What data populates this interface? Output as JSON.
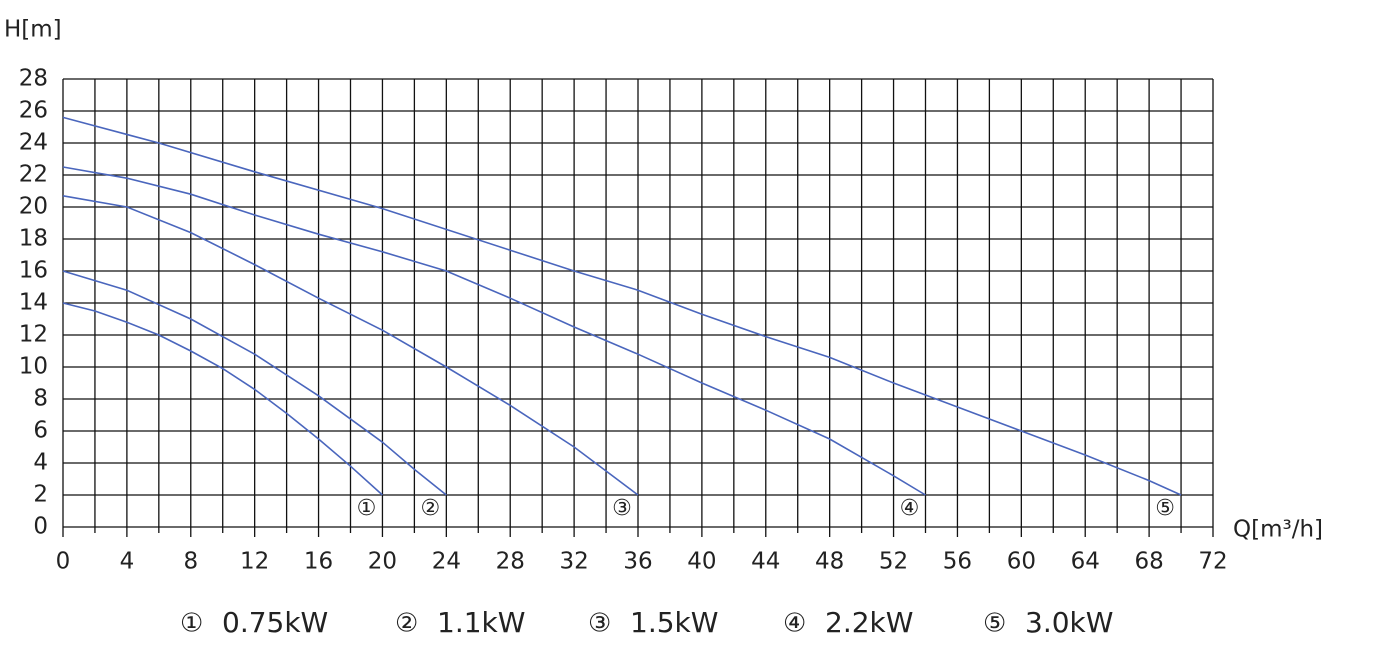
{
  "chart_data": {
    "type": "line",
    "x_label": "Q[m³/h]",
    "y_label": "H[m]",
    "xlim": [
      0,
      72
    ],
    "ylim": [
      0,
      28
    ],
    "xticks": [
      0,
      4,
      8,
      12,
      16,
      20,
      24,
      28,
      32,
      36,
      40,
      44,
      48,
      52,
      56,
      60,
      64,
      68,
      72
    ],
    "x_minor_grid": [
      2,
      6,
      10,
      14,
      18,
      22,
      26,
      30,
      34,
      38,
      42,
      46,
      50,
      54,
      58,
      62,
      66,
      70
    ],
    "yticks": [
      0,
      2,
      4,
      6,
      8,
      10,
      12,
      14,
      16,
      18,
      20,
      22,
      24,
      26,
      28
    ],
    "grid": true,
    "series": [
      {
        "label": "①",
        "name": "0.75kW",
        "color": "#4a66bd",
        "x": [
          0,
          2,
          4,
          6,
          8,
          10,
          12,
          14,
          16,
          18,
          20
        ],
        "values": [
          14,
          13.5,
          12.8,
          12,
          11,
          9.9,
          8.6,
          7.1,
          5.5,
          3.8,
          2
        ]
      },
      {
        "label": "②",
        "name": "1.1kW",
        "color": "#4a66bd",
        "x": [
          0,
          4,
          8,
          12,
          16,
          20,
          22,
          24
        ],
        "values": [
          16,
          14.8,
          13,
          10.8,
          8.2,
          5.3,
          3.6,
          2
        ]
      },
      {
        "label": "③",
        "name": "1.5kW",
        "color": "#4a66bd",
        "x": [
          0,
          4,
          8,
          12,
          16,
          20,
          24,
          28,
          32,
          34,
          36
        ],
        "values": [
          20.7,
          20,
          18.4,
          16.4,
          14.3,
          12.3,
          10,
          7.6,
          5,
          3.5,
          2
        ]
      },
      {
        "label": "④",
        "name": "2.2kW",
        "color": "#4a66bd",
        "x": [
          0,
          4,
          8,
          12,
          16,
          20,
          24,
          28,
          32,
          36,
          40,
          44,
          48,
          52,
          54
        ],
        "values": [
          22.5,
          21.8,
          20.8,
          19.5,
          18.3,
          17.2,
          16,
          14.3,
          12.5,
          10.8,
          9,
          7.3,
          5.5,
          3.2,
          2
        ]
      },
      {
        "label": "⑤",
        "name": "3.0kW",
        "color": "#4a66bd",
        "x": [
          0,
          6,
          12,
          20,
          28,
          32,
          36,
          40,
          44,
          48,
          52,
          56,
          60,
          64,
          68,
          70
        ],
        "values": [
          25.6,
          24,
          22.2,
          19.9,
          17.3,
          16,
          14.8,
          13.3,
          11.9,
          10.6,
          9,
          7.5,
          6,
          4.5,
          2.9,
          2
        ]
      }
    ]
  }
}
